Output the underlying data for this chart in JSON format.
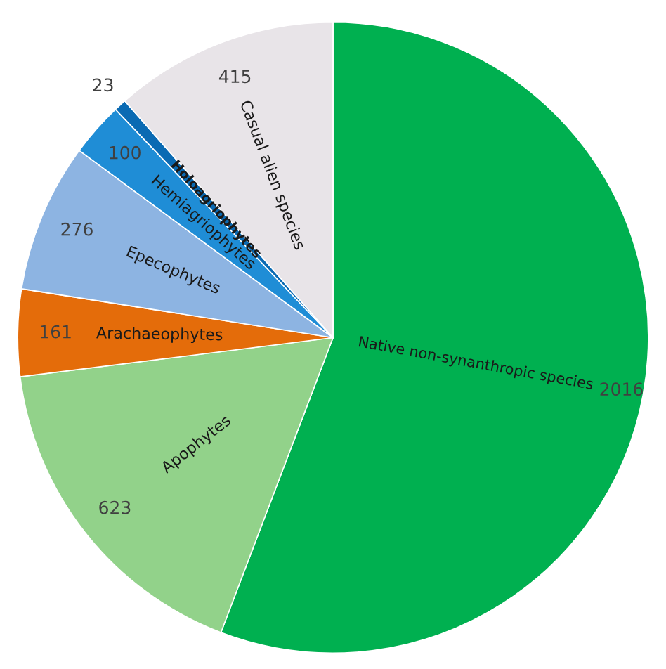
{
  "chart_data": {
    "type": "pie",
    "categories": [
      "Native non-synanthropic species",
      "Apophytes",
      "Arachaeophytes",
      "Epecophytes",
      "Hemiagriophytes",
      "Holoagriophytes",
      "Casual alien species"
    ],
    "values": [
      2016,
      623,
      161,
      276,
      100,
      23,
      415
    ],
    "colors": [
      "#00b050",
      "#92d28a",
      "#e46c0a",
      "#8db4e2",
      "#1f8dd6",
      "#0a6ab3",
      "#e8e4e8"
    ],
    "data_labels": true,
    "legend": false
  }
}
